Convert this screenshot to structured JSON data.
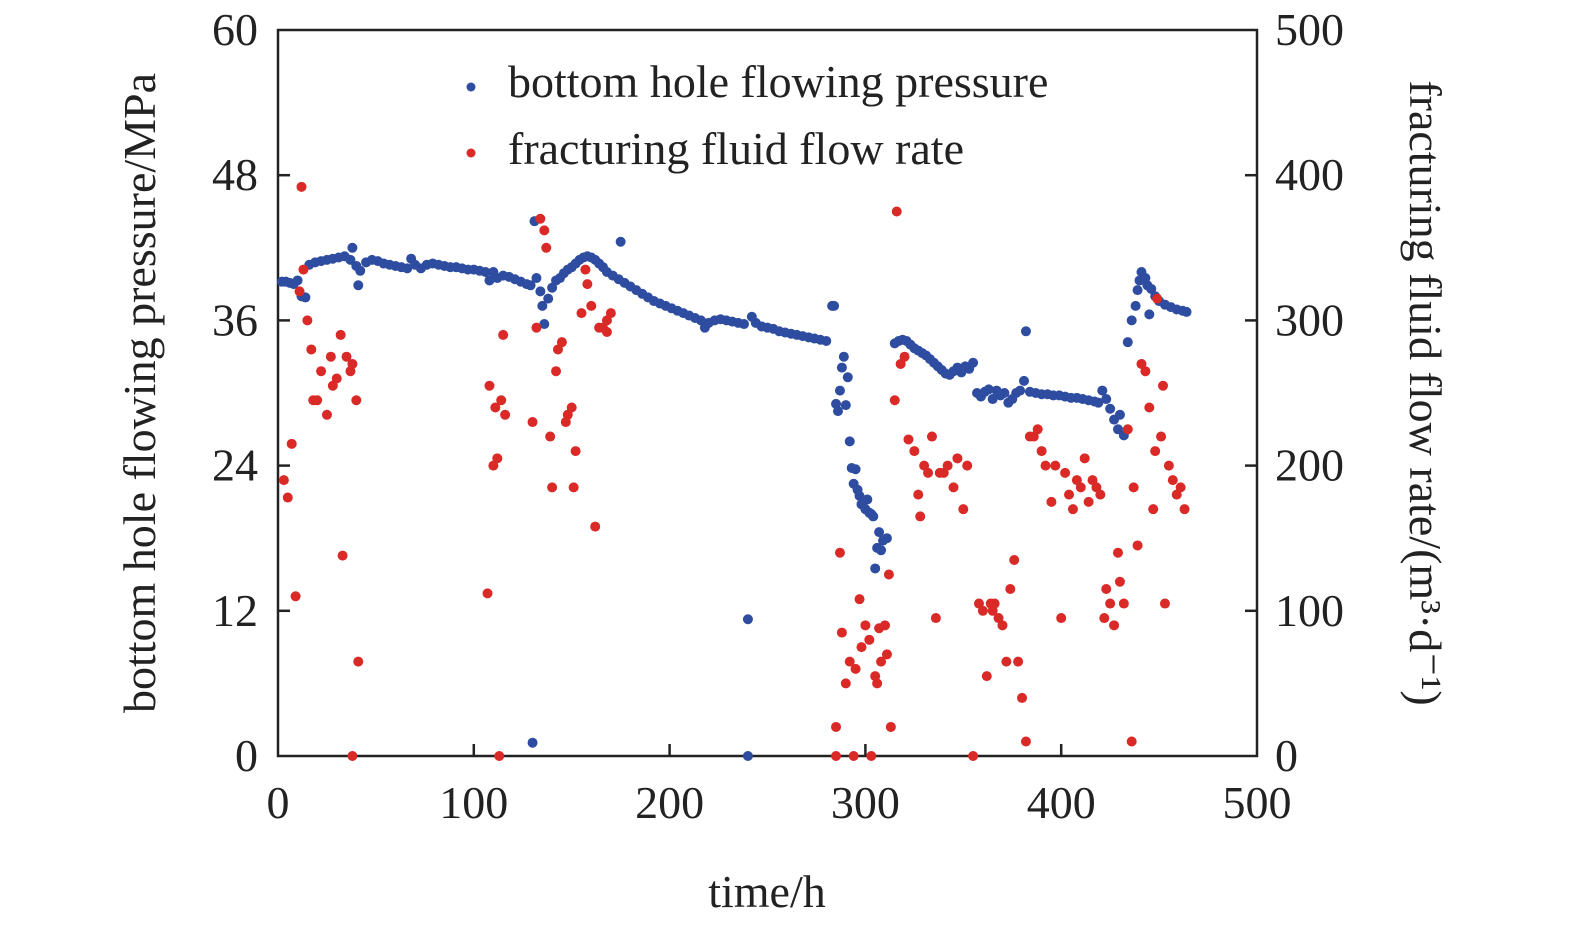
{
  "chart_data": {
    "type": "scatter",
    "title": "",
    "xlabel": "time/h",
    "ylabel_left": "bottom hole flowing pressure/MPa",
    "ylabel_right": "fracturing fluid flow rate/(m³·d⁻¹)",
    "xlim": [
      0,
      500
    ],
    "ylim_left": [
      0,
      60
    ],
    "ylim_right": [
      0,
      500
    ],
    "xticks": [
      0,
      100,
      200,
      300,
      400,
      500
    ],
    "yticks_left": [
      0,
      12,
      24,
      36,
      48,
      60
    ],
    "yticks_right": [
      0,
      100,
      200,
      300,
      400,
      500
    ],
    "grid": false,
    "legend_placement": "top-center",
    "series": [
      {
        "name": "bottom hole flowing pressure",
        "axis": "left",
        "color": "#2e4da0",
        "x": [
          2,
          4,
          6,
          8,
          10,
          12,
          14,
          16,
          19,
          22,
          25,
          28,
          31,
          34,
          37,
          38,
          40,
          42,
          41,
          45,
          48,
          51,
          54,
          57,
          60,
          63,
          66,
          68,
          70,
          73,
          76,
          79,
          82,
          85,
          88,
          91,
          94,
          97,
          100,
          103,
          106,
          108,
          110,
          112,
          115,
          118,
          121,
          124,
          127,
          129,
          131,
          132,
          134,
          135,
          136,
          138,
          140,
          142,
          144,
          146,
          148,
          150,
          152,
          154,
          156,
          158,
          160,
          162,
          164,
          166,
          168,
          171,
          174,
          175,
          177,
          180,
          183,
          186,
          189,
          192,
          195,
          198,
          201,
          204,
          207,
          210,
          213,
          216,
          218,
          220,
          223,
          226,
          229,
          232,
          235,
          238,
          240,
          240,
          242,
          244,
          247,
          250,
          253,
          256,
          259,
          262,
          265,
          268,
          271,
          274,
          277,
          280,
          283,
          284,
          285,
          286,
          287,
          288,
          289,
          290,
          291,
          292,
          293,
          294,
          295,
          296,
          297,
          298,
          300,
          301,
          302,
          303,
          304,
          305,
          306,
          307,
          308,
          309,
          311,
          315,
          317,
          319,
          321,
          323,
          325,
          327,
          329,
          331,
          333,
          335,
          337,
          339,
          341,
          343,
          345,
          347,
          349,
          351,
          353,
          355,
          357,
          359,
          361,
          363,
          365,
          367,
          369,
          371,
          373,
          375,
          377,
          379,
          381,
          382,
          384,
          387,
          390,
          393,
          396,
          399,
          402,
          405,
          408,
          411,
          414,
          417,
          419,
          421,
          423,
          425,
          427,
          429,
          430,
          432,
          434,
          436,
          438,
          439,
          440,
          441,
          443,
          444,
          445,
          446,
          448,
          450,
          453,
          456,
          459,
          462,
          464,
          130
        ],
        "y": [
          39.2,
          39.2,
          39.1,
          39.0,
          39.3,
          38.0,
          37.9,
          40.6,
          40.8,
          40.9,
          41.0,
          41.1,
          41.2,
          41.3,
          41.0,
          42.0,
          40.5,
          40.1,
          38.9,
          40.8,
          41.0,
          40.9,
          40.7,
          40.6,
          40.5,
          40.4,
          40.3,
          41.1,
          40.6,
          40.3,
          40.6,
          40.7,
          40.6,
          40.5,
          40.4,
          40.4,
          40.3,
          40.2,
          40.2,
          40.1,
          40.0,
          39.3,
          40.0,
          39.5,
          39.7,
          39.6,
          39.4,
          39.2,
          39.0,
          38.9,
          44.2,
          39.5,
          38.4,
          37.2,
          35.7,
          37.8,
          38.7,
          39.3,
          39.5,
          39.9,
          40.2,
          40.4,
          40.7,
          41.0,
          41.2,
          41.3,
          41.2,
          41.0,
          40.7,
          40.4,
          40.0,
          39.7,
          39.4,
          42.5,
          39.1,
          38.8,
          38.5,
          38.2,
          37.9,
          37.6,
          37.4,
          37.2,
          37.0,
          36.8,
          36.6,
          36.4,
          36.2,
          36.0,
          35.4,
          35.8,
          36.0,
          36.1,
          36.0,
          35.9,
          35.8,
          35.7,
          11.3,
          0,
          36.3,
          35.8,
          35.5,
          35.4,
          35.3,
          35.1,
          35.0,
          34.9,
          34.8,
          34.7,
          34.6,
          34.5,
          34.4,
          34.3,
          37.2,
          37.2,
          29.1,
          28.5,
          30.2,
          32.1,
          33.0,
          29.0,
          31.3,
          26.0,
          23.8,
          22.5,
          23.7,
          22.0,
          21.5,
          20.8,
          20.4,
          21.2,
          20.1,
          20.0,
          19.8,
          15.5,
          17.2,
          18.5,
          17.0,
          17.8,
          18.0,
          34.1,
          34.3,
          34.4,
          34.3,
          34.0,
          33.7,
          33.5,
          33.3,
          33.1,
          32.8,
          32.5,
          32.2,
          31.9,
          31.6,
          31.5,
          31.8,
          32.1,
          31.7,
          32.2,
          32.0,
          32.5,
          30.0,
          29.7,
          30.1,
          30.3,
          29.5,
          30.2,
          29.8,
          30.0,
          29.2,
          29.5,
          30.0,
          30.2,
          31.0,
          35.1,
          30.1,
          30.0,
          29.9,
          29.9,
          29.8,
          29.8,
          29.7,
          29.6,
          29.6,
          29.5,
          29.4,
          29.3,
          29.2,
          30.2,
          29.5,
          28.7,
          27.8,
          27.0,
          28.2,
          26.5,
          34.2,
          36.0,
          37.2,
          38.5,
          39.3,
          40.0,
          39.5,
          38.9,
          36.5,
          38.6,
          38.0,
          37.6,
          37.3,
          37.1,
          36.9,
          36.8,
          36.7,
          1.1
        ]
      },
      {
        "name": "fracturing fluid flow rate",
        "axis": "right",
        "color": "#d92a27",
        "x": [
          3,
          5,
          7,
          9,
          11,
          12,
          13,
          15,
          17,
          18,
          20,
          22,
          25,
          27,
          28,
          30,
          32,
          33,
          35,
          37,
          38,
          40,
          41,
          38,
          107,
          108,
          110,
          112,
          111,
          114,
          115,
          116,
          113,
          130,
          132,
          134,
          136,
          137,
          139,
          140,
          142,
          143,
          145,
          147,
          148,
          150,
          151,
          152,
          155,
          157,
          158,
          160,
          162,
          164,
          166,
          168,
          170,
          168,
          285,
          285,
          287,
          288,
          290,
          292,
          294,
          295,
          297,
          298,
          300,
          302,
          303,
          305,
          306,
          307,
          308,
          310,
          311,
          312,
          313,
          315,
          316,
          318,
          320,
          322,
          325,
          327,
          328,
          330,
          332,
          334,
          336,
          338,
          340,
          342,
          345,
          347,
          350,
          352,
          355,
          358,
          360,
          362,
          364,
          365,
          366,
          368,
          370,
          372,
          374,
          376,
          378,
          380,
          382,
          384,
          386,
          388,
          390,
          392,
          395,
          397,
          400,
          402,
          404,
          406,
          408,
          410,
          412,
          414,
          416,
          418,
          420,
          422,
          423,
          425,
          427,
          429,
          430,
          432,
          434,
          436,
          437,
          439,
          441,
          443,
          445,
          447,
          448,
          449,
          451,
          452,
          453,
          455,
          457,
          459,
          461,
          463
        ],
        "y": [
          190,
          178,
          215,
          110,
          320,
          392,
          335,
          300,
          280,
          245,
          245,
          265,
          235,
          275,
          255,
          260,
          290,
          138,
          275,
          265,
          270,
          245,
          65,
          0,
          112,
          255,
          200,
          205,
          240,
          245,
          290,
          235,
          0,
          230,
          295,
          370,
          362,
          350,
          220,
          185,
          265,
          280,
          285,
          230,
          235,
          240,
          185,
          210,
          305,
          335,
          325,
          310,
          158,
          295,
          295,
          300,
          305,
          292,
          20,
          0,
          140,
          85,
          50,
          65,
          0,
          60,
          108,
          75,
          90,
          80,
          0,
          55,
          50,
          88,
          65,
          90,
          70,
          125,
          20,
          245,
          375,
          270,
          275,
          218,
          210,
          180,
          165,
          200,
          195,
          220,
          95,
          195,
          195,
          200,
          185,
          205,
          170,
          200,
          0,
          105,
          100,
          55,
          105,
          100,
          105,
          95,
          90,
          65,
          115,
          135,
          65,
          40,
          10,
          220,
          220,
          225,
          210,
          200,
          175,
          200,
          95,
          195,
          180,
          170,
          190,
          185,
          205,
          175,
          190,
          185,
          180,
          95,
          115,
          105,
          90,
          140,
          120,
          105,
          225,
          10,
          185,
          145,
          270,
          265,
          240,
          170,
          210,
          315,
          220,
          255,
          105,
          200,
          190,
          180,
          185,
          170
        ]
      }
    ]
  }
}
